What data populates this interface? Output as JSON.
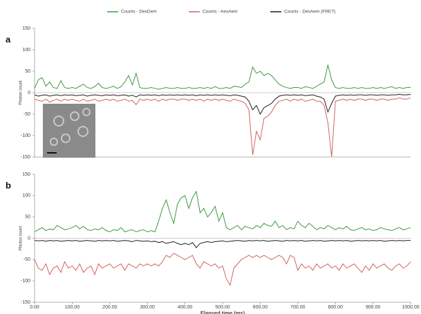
{
  "chart_data": [
    {
      "type": "line",
      "panel": "a",
      "ylabel": "Photon count",
      "legend": "top",
      "x": [
        0,
        10,
        20,
        30,
        40,
        50,
        60,
        70,
        80,
        90,
        100,
        110,
        120,
        130,
        140,
        150,
        160,
        170,
        180,
        190,
        200,
        210,
        220,
        230,
        240,
        250,
        260,
        270,
        280,
        290,
        300,
        310,
        320,
        330,
        340,
        350,
        360,
        370,
        380,
        390,
        400,
        410,
        420,
        430,
        440,
        450,
        460,
        470,
        480,
        490,
        500,
        510,
        520,
        530,
        540,
        550,
        560,
        570,
        580,
        590,
        600,
        610,
        620,
        630,
        640,
        650,
        660,
        670,
        680,
        690,
        700,
        710,
        720,
        730,
        740,
        750,
        760,
        770,
        780,
        790,
        800,
        810,
        820,
        830,
        840,
        850,
        860,
        870,
        880,
        890,
        900,
        910,
        920,
        930,
        940,
        950,
        960,
        970,
        980,
        990,
        1000
      ],
      "xlim": [
        0,
        1000
      ],
      "ylim": [
        -150,
        150
      ],
      "yticks": [
        -150,
        -100,
        -50,
        0,
        50,
        100,
        150
      ],
      "series": [
        {
          "name": "Counts - DexDem",
          "color": "#3c9a3c",
          "values": [
            10,
            30,
            35,
            15,
            25,
            12,
            10,
            28,
            12,
            10,
            12,
            10,
            15,
            20,
            12,
            10,
            14,
            22,
            12,
            10,
            12,
            15,
            10,
            14,
            25,
            40,
            18,
            45,
            12,
            10,
            10,
            12,
            10,
            8,
            10,
            12,
            10,
            10,
            12,
            10,
            10,
            12,
            10,
            10,
            12,
            10,
            12,
            10,
            14,
            10,
            10,
            12,
            10,
            15,
            14,
            12,
            20,
            25,
            60,
            45,
            50,
            40,
            45,
            40,
            30,
            20,
            15,
            12,
            10,
            12,
            12,
            10,
            14,
            12,
            10,
            15,
            20,
            25,
            65,
            30,
            12,
            10,
            12,
            10,
            10,
            12,
            10,
            12,
            10,
            10,
            12,
            10,
            12,
            10,
            12,
            14,
            10,
            12,
            10,
            12,
            12
          ]
        },
        {
          "name": "Counts - AexAem",
          "color": "#d0625c",
          "values": [
            -15,
            -18,
            -20,
            -15,
            -22,
            -18,
            -15,
            -20,
            -15,
            -18,
            -15,
            -18,
            -20,
            -15,
            -20,
            -18,
            -15,
            -20,
            -18,
            -15,
            -18,
            -15,
            -20,
            -18,
            -15,
            -20,
            -18,
            -28,
            -15,
            -18,
            -15,
            -18,
            -15,
            -20,
            -15,
            -18,
            -15,
            -15,
            -18,
            -15,
            -15,
            -18,
            -15,
            -18,
            -15,
            -20,
            -15,
            -18,
            -15,
            -18,
            -15,
            -18,
            -20,
            -15,
            -18,
            -20,
            -25,
            -40,
            -145,
            -90,
            -110,
            -60,
            -55,
            -45,
            -30,
            -20,
            -18,
            -15,
            -20,
            -15,
            -18,
            -15,
            -20,
            -18,
            -15,
            -20,
            -20,
            -30,
            -70,
            -150,
            -20,
            -18,
            -15,
            -18,
            -15,
            -18,
            -15,
            -15,
            -18,
            -15,
            -15,
            -18,
            -15,
            -15,
            -18,
            -15,
            -15,
            -12,
            -15,
            -15,
            -12
          ]
        },
        {
          "name": "Counts - DexAem (FRET)",
          "color": "#1e1e1e",
          "values": [
            -5,
            -8,
            -6,
            -5,
            -8,
            -6,
            -5,
            -7,
            -5,
            -6,
            -5,
            -7,
            -6,
            -5,
            -8,
            -6,
            -5,
            -6,
            -7,
            -5,
            -6,
            -5,
            -7,
            -6,
            -5,
            -8,
            -6,
            -10,
            -5,
            -6,
            -5,
            -6,
            -5,
            -7,
            -5,
            -6,
            -5,
            -6,
            -5,
            -6,
            -5,
            -6,
            -5,
            -7,
            -5,
            -6,
            -5,
            -6,
            -5,
            -6,
            -5,
            -6,
            -7,
            -5,
            -6,
            -8,
            -10,
            -20,
            -40,
            -30,
            -50,
            -35,
            -30,
            -25,
            -15,
            -8,
            -6,
            -5,
            -6,
            -5,
            -6,
            -5,
            -7,
            -6,
            -5,
            -8,
            -10,
            -15,
            -45,
            -25,
            -8,
            -6,
            -5,
            -6,
            -5,
            -6,
            -5,
            -5,
            -6,
            -5,
            -5,
            -6,
            -5,
            -5,
            -6,
            -5,
            -5,
            -4,
            -5,
            -5,
            -4
          ]
        }
      ]
    },
    {
      "type": "line",
      "panel": "b",
      "ylabel": "Photon count",
      "xlabel": "Elapsed time (ms)",
      "x": [
        0,
        10,
        20,
        30,
        40,
        50,
        60,
        70,
        80,
        90,
        100,
        110,
        120,
        130,
        140,
        150,
        160,
        170,
        180,
        190,
        200,
        210,
        220,
        230,
        240,
        250,
        260,
        270,
        280,
        290,
        300,
        310,
        320,
        330,
        340,
        350,
        360,
        370,
        380,
        390,
        400,
        410,
        420,
        430,
        440,
        450,
        460,
        470,
        480,
        490,
        500,
        510,
        520,
        530,
        540,
        550,
        560,
        570,
        580,
        590,
        600,
        610,
        620,
        630,
        640,
        650,
        660,
        670,
        680,
        690,
        700,
        710,
        720,
        730,
        740,
        750,
        760,
        770,
        780,
        790,
        800,
        810,
        820,
        830,
        840,
        850,
        860,
        870,
        880,
        890,
        900,
        910,
        920,
        930,
        940,
        950,
        960,
        970,
        980,
        990,
        1000
      ],
      "xlim": [
        0,
        1000
      ],
      "ylim": [
        -150,
        150
      ],
      "yticks": [
        -150,
        -100,
        -50,
        0,
        50,
        100,
        150
      ],
      "xticks": [
        {
          "value": 0,
          "label": "0.00"
        },
        {
          "value": 100,
          "label": "100.00"
        },
        {
          "value": 200,
          "label": "200.00"
        },
        {
          "value": 300,
          "label": "300.00"
        },
        {
          "value": 400,
          "label": "400.00"
        },
        {
          "value": 500,
          "label": "500.00"
        },
        {
          "value": 600,
          "label": "600.00"
        },
        {
          "value": 700,
          "label": "700.00"
        },
        {
          "value": 800,
          "label": "800.00"
        },
        {
          "value": 900,
          "label": "900.00"
        },
        {
          "value": 1000,
          "label": "1000.00"
        }
      ],
      "series": [
        {
          "color": "#3c9a3c",
          "values": [
            15,
            20,
            25,
            18,
            22,
            20,
            30,
            25,
            20,
            22,
            25,
            30,
            22,
            28,
            20,
            18,
            22,
            20,
            25,
            18,
            15,
            20,
            18,
            25,
            15,
            18,
            20,
            15,
            18,
            20,
            15,
            18,
            15,
            40,
            70,
            90,
            60,
            35,
            80,
            95,
            100,
            70,
            95,
            110,
            60,
            70,
            50,
            60,
            75,
            40,
            60,
            25,
            20,
            25,
            30,
            20,
            28,
            25,
            22,
            30,
            25,
            35,
            30,
            28,
            40,
            25,
            30,
            20,
            25,
            22,
            40,
            30,
            25,
            35,
            28,
            20,
            25,
            22,
            30,
            25,
            20,
            25,
            22,
            28,
            20,
            18,
            22,
            25,
            20,
            22,
            18,
            20,
            25,
            22,
            20,
            18,
            22,
            25,
            20,
            22,
            25
          ]
        },
        {
          "color": "#d0625c",
          "values": [
            -50,
            -70,
            -75,
            -60,
            -85,
            -70,
            -65,
            -80,
            -55,
            -70,
            -65,
            -75,
            -60,
            -80,
            -70,
            -65,
            -85,
            -60,
            -70,
            -65,
            -60,
            -70,
            -65,
            -60,
            -75,
            -60,
            -65,
            -70,
            -60,
            -65,
            -60,
            -65,
            -60,
            -65,
            -55,
            -40,
            -45,
            -35,
            -40,
            -45,
            -50,
            -45,
            -40,
            -60,
            -70,
            -55,
            -60,
            -65,
            -60,
            -70,
            -65,
            -95,
            -110,
            -70,
            -60,
            -50,
            -45,
            -40,
            -45,
            -40,
            -45,
            -40,
            -45,
            -50,
            -45,
            -40,
            -45,
            -60,
            -40,
            -45,
            -75,
            -60,
            -70,
            -65,
            -75,
            -60,
            -70,
            -65,
            -60,
            -70,
            -65,
            -75,
            -60,
            -70,
            -65,
            -60,
            -70,
            -80,
            -65,
            -75,
            -60,
            -70,
            -65,
            -60,
            -70,
            -75,
            -65,
            -60,
            -70,
            -65,
            -55
          ]
        },
        {
          "color": "#1e1e1e",
          "values": [
            -5,
            -6,
            -5,
            -7,
            -5,
            -6,
            -5,
            -7,
            -6,
            -5,
            -6,
            -5,
            -7,
            -6,
            -5,
            -6,
            -7,
            -5,
            -6,
            -5,
            -6,
            -5,
            -7,
            -6,
            -5,
            -6,
            -8,
            -5,
            -6,
            -7,
            -6,
            -8,
            -7,
            -10,
            -8,
            -12,
            -10,
            -8,
            -12,
            -15,
            -12,
            -15,
            -10,
            -22,
            -12,
            -10,
            -8,
            -10,
            -8,
            -7,
            -6,
            -8,
            -7,
            -6,
            -5,
            -6,
            -7,
            -5,
            -6,
            -5,
            -6,
            -5,
            -7,
            -6,
            -5,
            -6,
            -7,
            -5,
            -6,
            -5,
            -6,
            -5,
            -7,
            -6,
            -5,
            -6,
            -5,
            -7,
            -6,
            -5,
            -6,
            -5,
            -6,
            -5,
            -7,
            -6,
            -5,
            -6,
            -5,
            -6,
            -5,
            -6,
            -5,
            -7,
            -6,
            -5,
            -6,
            -5,
            -6,
            -5,
            -5
          ]
        }
      ]
    }
  ]
}
